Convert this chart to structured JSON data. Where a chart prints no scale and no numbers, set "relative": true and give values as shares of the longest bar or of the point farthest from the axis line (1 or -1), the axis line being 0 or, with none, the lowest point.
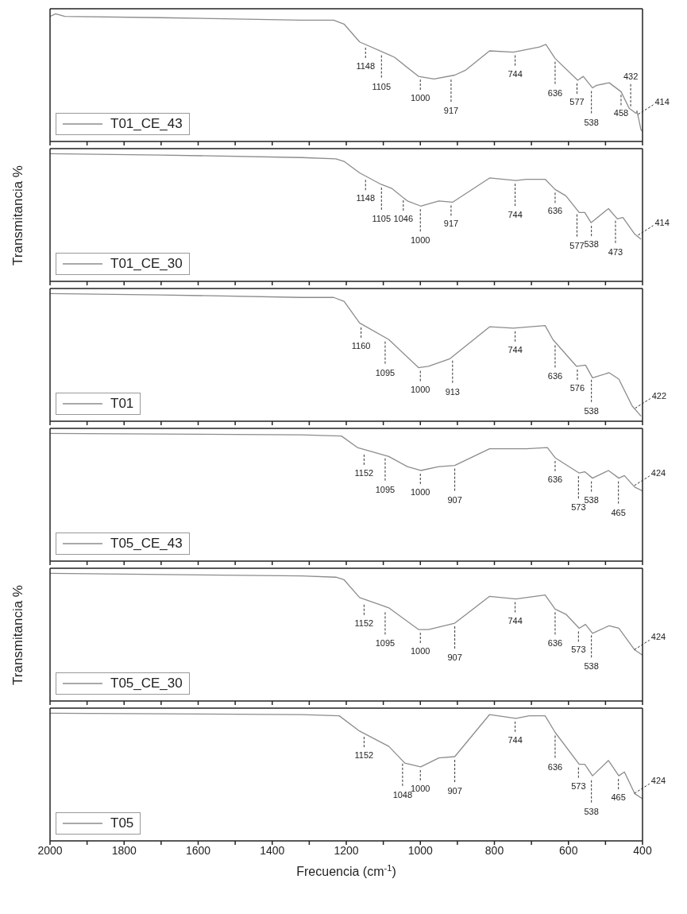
{
  "chart_data": [
    {
      "type": "line",
      "relative": true,
      "legend": "bottom left",
      "tick_labels": false,
      "xlim": [
        2000,
        400
      ],
      "xticks": [
        2000,
        {
          "value": 1900,
          "label": null
        },
        1800,
        {
          "value": 1700,
          "label": null
        },
        1600,
        {
          "value": 1500,
          "label": null
        },
        1400,
        {
          "value": 1300,
          "label": null
        },
        1200,
        {
          "value": 1100,
          "label": null
        },
        1000,
        {
          "value": 900,
          "label": null
        },
        800,
        {
          "value": 700,
          "label": null
        },
        600,
        {
          "value": 500,
          "label": null
        },
        400
      ],
      "x": [
        2000,
        1985,
        1960,
        1700,
        1320,
        1234,
        1206,
        1164,
        1085,
        1070,
        1005,
        963,
        907,
        877,
        813,
        749,
        678,
        661,
        636,
        575,
        560,
        535,
        524,
        490,
        458,
        436,
        417,
        415,
        404,
        400
      ],
      "series": [
        {
          "name": "T01_CE_43",
          "color": "#8c8c8c",
          "values": [
            0.98,
            1.0,
            0.98,
            0.97,
            0.95,
            0.95,
            0.92,
            0.78,
            0.68,
            0.66,
            0.51,
            0.49,
            0.52,
            0.56,
            0.71,
            0.7,
            0.74,
            0.76,
            0.65,
            0.48,
            0.51,
            0.42,
            0.44,
            0.46,
            0.39,
            0.26,
            0.22,
            0.24,
            0.09,
            0.08
          ]
        }
      ],
      "annotations": [
        {
          "text": "1148",
          "x": 1148,
          "y": 0.76
        },
        {
          "text": "1105",
          "x": 1105,
          "y": 0.7
        },
        {
          "text": "1000",
          "x": 1000,
          "y": 0.51
        },
        {
          "text": "917",
          "x": 917,
          "y": 0.51
        },
        {
          "text": "744",
          "x": 744,
          "y": 0.7
        },
        {
          "text": "636",
          "x": 636,
          "y": 0.65
        },
        {
          "text": "577",
          "x": 577,
          "y": 0.48
        },
        {
          "text": "538",
          "x": 538,
          "y": 0.42
        },
        {
          "text": "458",
          "x": 458,
          "y": 0.39
        },
        {
          "text": "432",
          "x": 432,
          "y": 0.25
        },
        {
          "text": "414",
          "x": 414,
          "y": 0.2
        }
      ]
    },
    {
      "type": "line",
      "relative": true,
      "legend": "bottom left",
      "tick_labels": false,
      "ylabel": "Transmitancia %",
      "xlim": [
        2000,
        400
      ],
      "xticks": [
        2000,
        {
          "value": 1900,
          "label": null
        },
        1800,
        {
          "value": 1700,
          "label": null
        },
        1600,
        {
          "value": 1500,
          "label": null
        },
        1400,
        {
          "value": 1300,
          "label": null
        },
        1200,
        {
          "value": 1100,
          "label": null
        },
        1000,
        {
          "value": 900,
          "label": null
        },
        800,
        {
          "value": 700,
          "label": null
        },
        600,
        {
          "value": 500,
          "label": null
        },
        400
      ],
      "x": [
        2000,
        1700,
        1320,
        1228,
        1206,
        1164,
        1106,
        1078,
        1035,
        999,
        950,
        913,
        813,
        742,
        714,
        663,
        636,
        607,
        571,
        556,
        539,
        492,
        468,
        453,
        421,
        404
      ],
      "series": [
        {
          "name": "T01_CE_30",
          "color": "#8c8c8c",
          "values": [
            1.0,
            0.99,
            0.97,
            0.96,
            0.94,
            0.85,
            0.76,
            0.73,
            0.63,
            0.59,
            0.63,
            0.62,
            0.81,
            0.79,
            0.8,
            0.8,
            0.72,
            0.67,
            0.54,
            0.54,
            0.46,
            0.57,
            0.49,
            0.5,
            0.37,
            0.33
          ]
        }
      ],
      "annotations": [
        {
          "text": "1148",
          "x": 1148,
          "y": 0.82
        },
        {
          "text": "1105",
          "x": 1105,
          "y": 0.76
        },
        {
          "text": "1046",
          "x": 1046,
          "y": 0.66
        },
        {
          "text": "1000",
          "x": 1000,
          "y": 0.59
        },
        {
          "text": "917",
          "x": 917,
          "y": 0.62
        },
        {
          "text": "744",
          "x": 744,
          "y": 0.79
        },
        {
          "text": "636",
          "x": 636,
          "y": 0.72
        },
        {
          "text": "577",
          "x": 577,
          "y": 0.55
        },
        {
          "text": "538",
          "x": 538,
          "y": 0.46
        },
        {
          "text": "473",
          "x": 473,
          "y": 0.5
        },
        {
          "text": "414",
          "x": 414,
          "y": 0.35
        }
      ]
    },
    {
      "type": "line",
      "relative": true,
      "legend": "bottom left",
      "tick_labels": false,
      "xlim": [
        2000,
        400
      ],
      "xticks": [
        2000,
        {
          "value": 1900,
          "label": null
        },
        1800,
        {
          "value": 1700,
          "label": null
        },
        1600,
        {
          "value": 1500,
          "label": null
        },
        1400,
        {
          "value": 1300,
          "label": null
        },
        1200,
        {
          "value": 1100,
          "label": null
        },
        1000,
        {
          "value": 900,
          "label": null
        },
        800,
        {
          "value": 700,
          "label": null
        },
        600,
        {
          "value": 500,
          "label": null
        },
        400
      ],
      "x": [
        2000,
        1700,
        1320,
        1234,
        1206,
        1164,
        1085,
        1005,
        978,
        920,
        813,
        749,
        663,
        642,
        578,
        554,
        535,
        490,
        464,
        428,
        404
      ],
      "series": [
        {
          "name": "T01",
          "color": "#8c8c8c",
          "values": [
            1.0,
            0.99,
            0.97,
            0.97,
            0.94,
            0.77,
            0.64,
            0.42,
            0.43,
            0.49,
            0.74,
            0.73,
            0.75,
            0.64,
            0.43,
            0.44,
            0.34,
            0.38,
            0.33,
            0.12,
            0.04
          ]
        }
      ],
      "annotations": [
        {
          "text": "1160",
          "x": 1160,
          "y": 0.76
        },
        {
          "text": "1095",
          "x": 1095,
          "y": 0.65
        },
        {
          "text": "1000",
          "x": 1000,
          "y": 0.42
        },
        {
          "text": "913",
          "x": 913,
          "y": 0.5
        },
        {
          "text": "744",
          "x": 744,
          "y": 0.73
        },
        {
          "text": "636",
          "x": 636,
          "y": 0.62
        },
        {
          "text": "576",
          "x": 576,
          "y": 0.43
        },
        {
          "text": "538",
          "x": 538,
          "y": 0.35
        },
        {
          "text": "422",
          "x": 422,
          "y": 0.09
        }
      ]
    },
    {
      "type": "line",
      "relative": true,
      "legend": "bottom left",
      "tick_labels": false,
      "xlim": [
        2000,
        400
      ],
      "xticks": [
        2000,
        {
          "value": 1900,
          "label": null
        },
        1800,
        {
          "value": 1700,
          "label": null
        },
        1600,
        {
          "value": 1500,
          "label": null
        },
        1400,
        {
          "value": 1300,
          "label": null
        },
        1200,
        {
          "value": 1100,
          "label": null
        },
        1000,
        {
          "value": 900,
          "label": null
        },
        800,
        {
          "value": 700,
          "label": null
        },
        600,
        {
          "value": 500,
          "label": null
        },
        400
      ],
      "x": [
        2000,
        1320,
        1213,
        1170,
        1085,
        1035,
        999,
        950,
        907,
        813,
        714,
        657,
        636,
        571,
        556,
        535,
        492,
        464,
        449,
        421,
        400
      ],
      "series": [
        {
          "name": "T05_CE_43",
          "color": "#8c8c8c",
          "values": [
            1.0,
            0.99,
            0.98,
            0.89,
            0.82,
            0.74,
            0.71,
            0.74,
            0.75,
            0.88,
            0.88,
            0.89,
            0.81,
            0.69,
            0.7,
            0.65,
            0.71,
            0.65,
            0.67,
            0.58,
            0.55
          ]
        }
      ],
      "annotations": [
        {
          "text": "1152",
          "x": 1152,
          "y": 0.86
        },
        {
          "text": "1095",
          "x": 1095,
          "y": 0.83
        },
        {
          "text": "1000",
          "x": 1000,
          "y": 0.71
        },
        {
          "text": "907",
          "x": 907,
          "y": 0.75
        },
        {
          "text": "636",
          "x": 636,
          "y": 0.81
        },
        {
          "text": "573",
          "x": 573,
          "y": 0.69
        },
        {
          "text": "538",
          "x": 538,
          "y": 0.65
        },
        {
          "text": "465",
          "x": 465,
          "y": 0.65
        },
        {
          "text": "424",
          "x": 424,
          "y": 0.58
        }
      ]
    },
    {
      "type": "line",
      "relative": true,
      "legend": "bottom left",
      "tick_labels": false,
      "ylabel": "Transmitancia %",
      "xlim": [
        2000,
        400
      ],
      "xticks": [
        2000,
        {
          "value": 1900,
          "label": null
        },
        1800,
        {
          "value": 1700,
          "label": null
        },
        1600,
        {
          "value": 1500,
          "label": null
        },
        1400,
        {
          "value": 1300,
          "label": null
        },
        1200,
        {
          "value": 1100,
          "label": null
        },
        1000,
        {
          "value": 900,
          "label": null
        },
        800,
        {
          "value": 700,
          "label": null
        },
        600,
        {
          "value": 500,
          "label": null
        },
        400
      ],
      "x": [
        2000,
        1320,
        1228,
        1206,
        1164,
        1085,
        1005,
        978,
        907,
        813,
        742,
        663,
        636,
        607,
        571,
        554,
        535,
        490,
        464,
        421,
        400
      ],
      "series": [
        {
          "name": "T05_CE_30",
          "color": "#8c8c8c",
          "values": [
            1.0,
            0.98,
            0.97,
            0.95,
            0.81,
            0.73,
            0.56,
            0.56,
            0.61,
            0.82,
            0.8,
            0.83,
            0.72,
            0.68,
            0.57,
            0.6,
            0.53,
            0.59,
            0.57,
            0.4,
            0.36
          ]
        }
      ],
      "annotations": [
        {
          "text": "1152",
          "x": 1152,
          "y": 0.78
        },
        {
          "text": "1095",
          "x": 1095,
          "y": 0.72
        },
        {
          "text": "1000",
          "x": 1000,
          "y": 0.56
        },
        {
          "text": "907",
          "x": 907,
          "y": 0.61
        },
        {
          "text": "744",
          "x": 744,
          "y": 0.8
        },
        {
          "text": "636",
          "x": 636,
          "y": 0.72
        },
        {
          "text": "573",
          "x": 573,
          "y": 0.57
        },
        {
          "text": "538",
          "x": 538,
          "y": 0.54
        },
        {
          "text": "424",
          "x": 424,
          "y": 0.39
        }
      ]
    },
    {
      "type": "line",
      "relative": true,
      "legend": "bottom left",
      "tick_labels": "x",
      "xlabel": "Frecuencia (cm$^{-1}$)",
      "xlim": [
        2000,
        400
      ],
      "xticks": [
        2000,
        {
          "value": 1900,
          "label": null
        },
        1800,
        {
          "value": 1700,
          "label": null
        },
        1600,
        {
          "value": 1500,
          "label": null
        },
        1400,
        {
          "value": 1300,
          "label": null
        },
        1200,
        {
          "value": 1100,
          "label": null
        },
        1000,
        {
          "value": 900,
          "label": null
        },
        800,
        {
          "value": 700,
          "label": null
        },
        600,
        {
          "value": 500,
          "label": null
        },
        400
      ],
      "x": [
        2000,
        1320,
        1219,
        1164,
        1085,
        1042,
        999,
        950,
        907,
        813,
        742,
        706,
        663,
        636,
        571,
        556,
        535,
        492,
        464,
        449,
        421,
        400
      ],
      "series": [
        {
          "name": "T05",
          "color": "#8c8c8c",
          "values": [
            1.0,
            0.99,
            0.98,
            0.86,
            0.74,
            0.61,
            0.58,
            0.65,
            0.66,
            0.99,
            0.96,
            0.98,
            0.98,
            0.85,
            0.6,
            0.6,
            0.51,
            0.63,
            0.51,
            0.54,
            0.37,
            0.33
          ]
        }
      ],
      "annotations": [
        {
          "text": "1152",
          "x": 1152,
          "y": 0.84
        },
        {
          "text": "1048",
          "x": 1048,
          "y": 0.63
        },
        {
          "text": "1000",
          "x": 1000,
          "y": 0.58
        },
        {
          "text": "907",
          "x": 907,
          "y": 0.66
        },
        {
          "text": "744",
          "x": 744,
          "y": 0.96
        },
        {
          "text": "636",
          "x": 636,
          "y": 0.85
        },
        {
          "text": "573",
          "x": 573,
          "y": 0.6
        },
        {
          "text": "538",
          "x": 538,
          "y": 0.5
        },
        {
          "text": "465",
          "x": 465,
          "y": 0.51
        },
        {
          "text": "424",
          "x": 424,
          "y": 0.36
        }
      ]
    }
  ]
}
